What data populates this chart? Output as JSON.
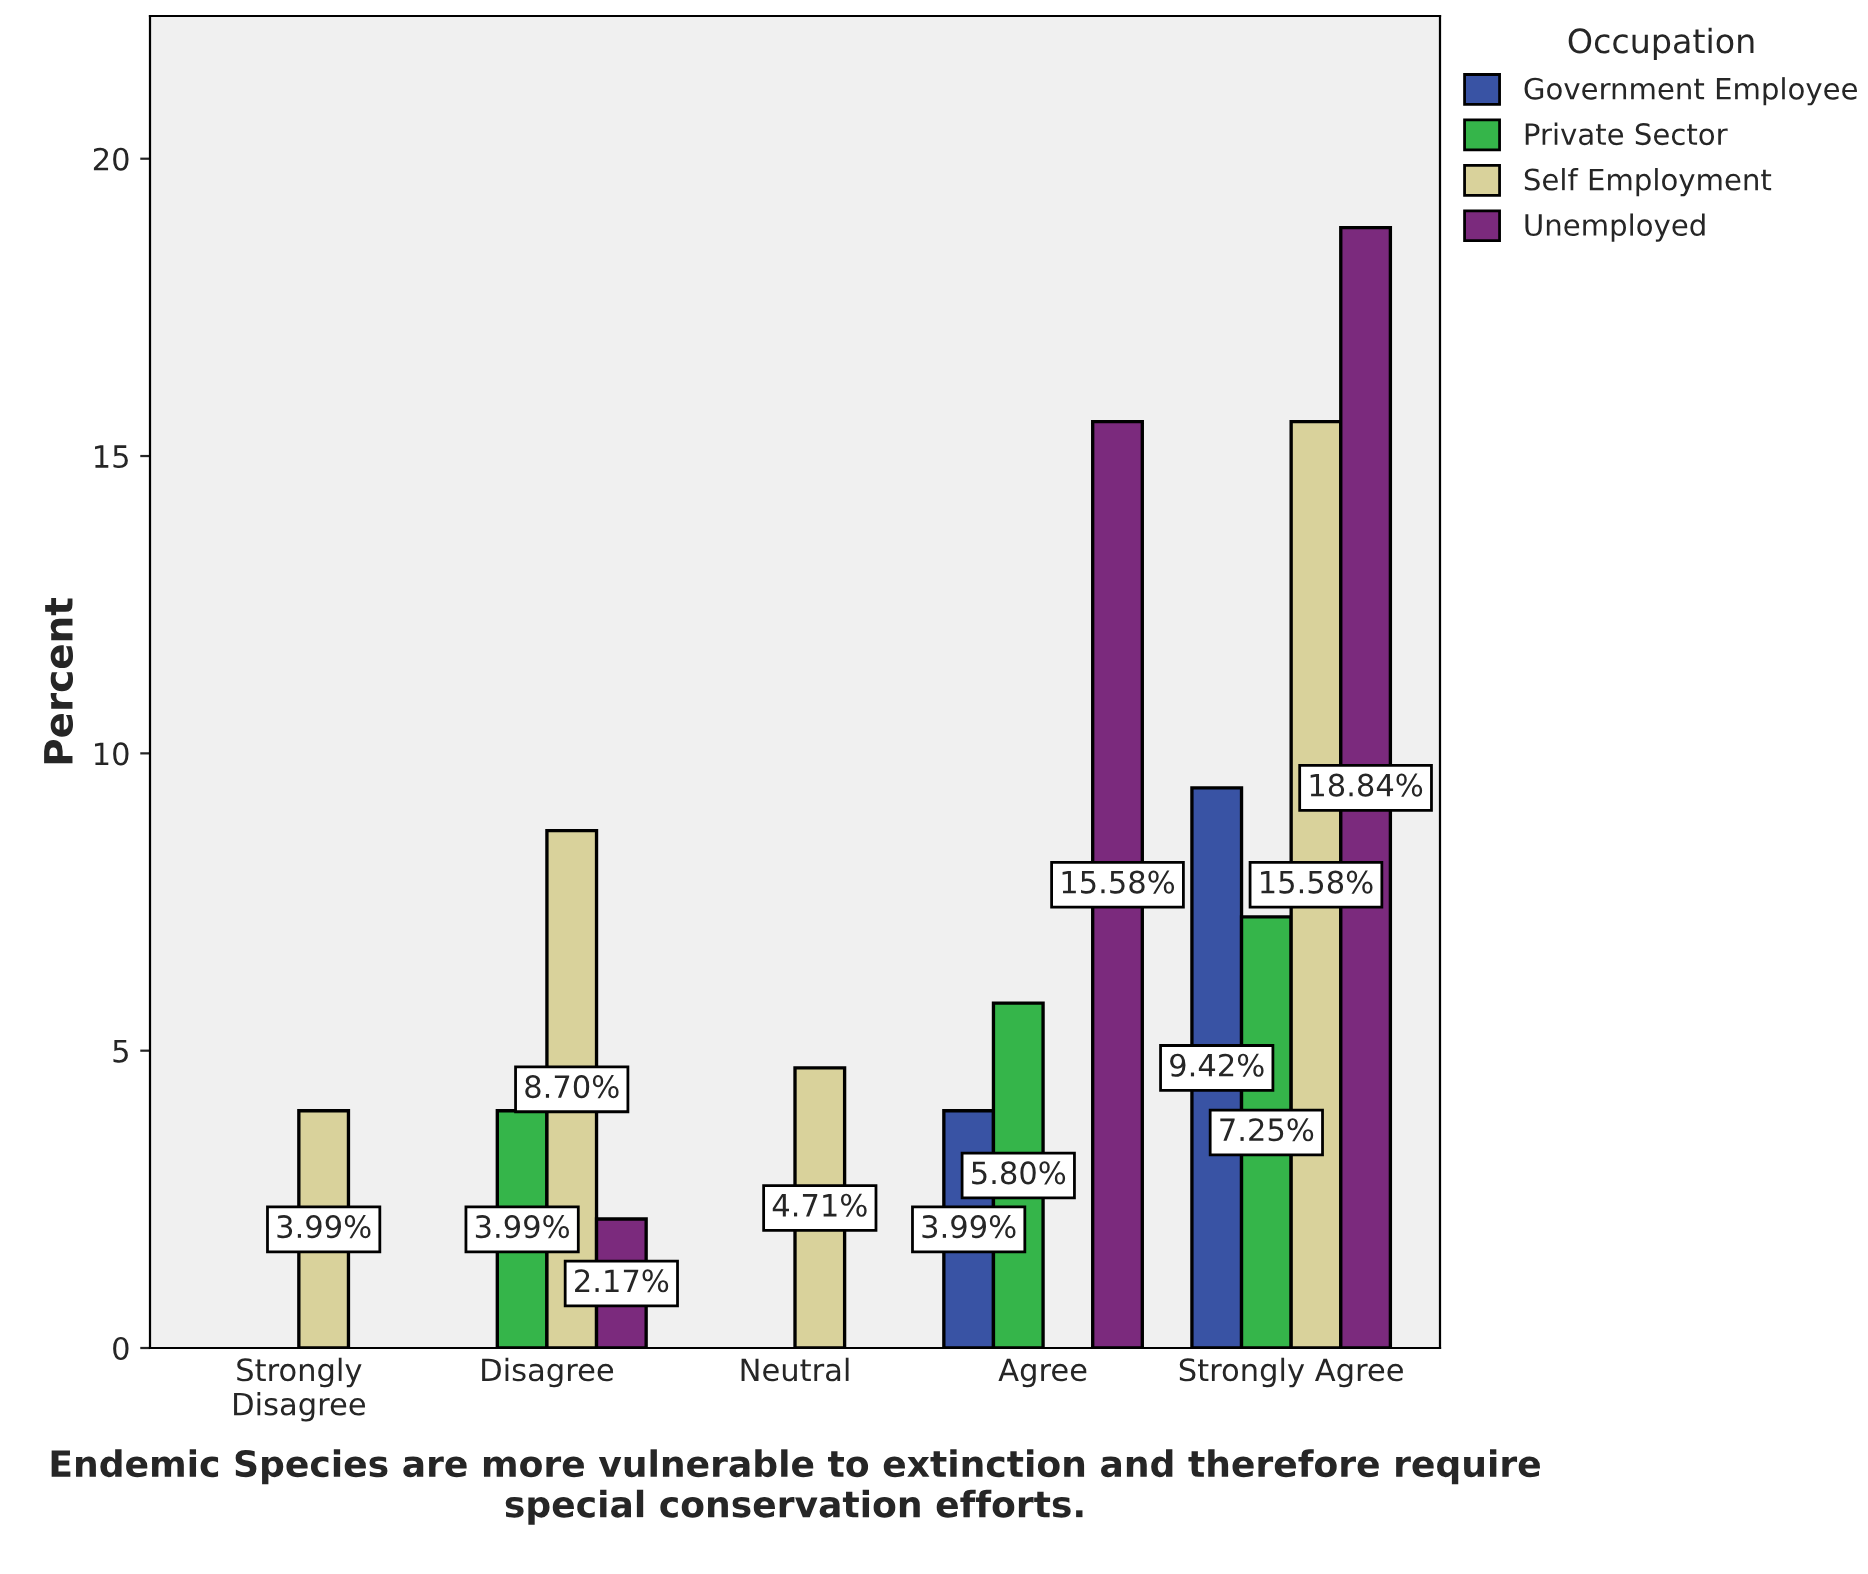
{
  "chart_data": {
    "type": "bar",
    "xlabel": "Endemic Species are more vulnerable to extinction and therefore require special conservation efforts.",
    "ylabel": "Percent",
    "legend_title": "Occupation",
    "legend": "top right",
    "categories": [
      "Strongly Disagree",
      "Disagree",
      "Neutral",
      "Agree",
      "Strongly Agree"
    ],
    "series": [
      {
        "name": "Government Employee",
        "color": "#3953a4",
        "values": [
          null,
          null,
          null,
          3.99,
          9.42
        ],
        "value_labels": [
          null,
          null,
          null,
          "3.99%",
          "9.42%"
        ]
      },
      {
        "name": "Private Sector",
        "color": "#35b54a",
        "values": [
          null,
          3.99,
          null,
          5.8,
          7.25
        ],
        "value_labels": [
          null,
          "3.99%",
          null,
          "5.80%",
          "7.25%"
        ]
      },
      {
        "name": "Self Employment",
        "color": "#d9d29b",
        "values": [
          3.99,
          8.7,
          4.71,
          null,
          15.58
        ],
        "value_labels": [
          "3.99%",
          "8.70%",
          "4.71%",
          null,
          "15.58%"
        ]
      },
      {
        "name": "Unemployed",
        "color": "#7b2a7d",
        "values": [
          null,
          2.17,
          null,
          15.58,
          18.84
        ],
        "value_labels": [
          null,
          "2.17%",
          null,
          "15.58%",
          "18.84%"
        ]
      }
    ],
    "ylim": [
      0,
      22.4
    ],
    "yticks": [
      0,
      5,
      10,
      15,
      20
    ],
    "grid": false
  }
}
